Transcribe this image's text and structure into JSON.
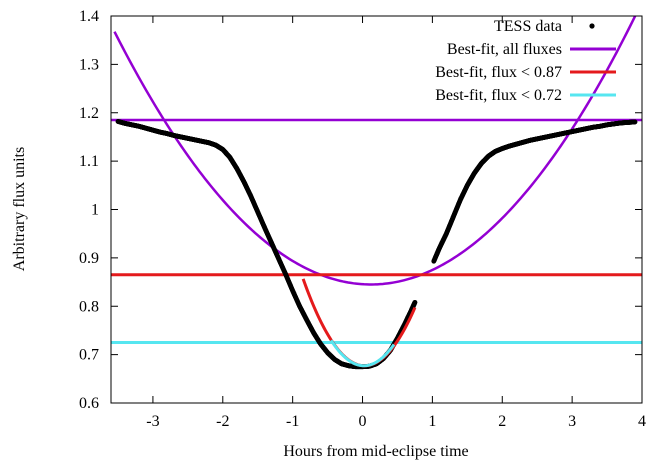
{
  "chart_data": {
    "type": "scatter",
    "title": "",
    "xlabel": "Hours from mid-eclipse time",
    "ylabel": "Arbitrary flux units",
    "xlim": [
      -3.6,
      4.0
    ],
    "ylim": [
      0.6,
      1.4
    ],
    "xticks": [
      -3,
      -2,
      -1,
      0,
      1,
      2,
      3,
      4
    ],
    "xtick_labels": [
      "-3",
      "-2",
      "-1",
      "0",
      "1",
      "2",
      "3",
      "4"
    ],
    "yticks": [
      0.6,
      0.7,
      0.8,
      0.9,
      1.0,
      1.1,
      1.2,
      1.3,
      1.4
    ],
    "ytick_labels": [
      "0.6",
      "0.7",
      "0.8",
      "0.9",
      "1",
      "1.1",
      "1.2",
      "1.3",
      "1.4"
    ],
    "grid": false,
    "legend_position": "top-right",
    "colors": {
      "tess": "#000000",
      "fit_all": "#9400d3",
      "fit_087": "#e41a1c",
      "fit_072": "#56e6f0"
    },
    "series": [
      {
        "name": "TESS data",
        "kind": "points",
        "x": [
          -3.5,
          -3.4,
          -3.3,
          -3.2,
          -3.1,
          -3.0,
          -2.9,
          -2.8,
          -2.7,
          -2.6,
          -2.5,
          -2.4,
          -2.3,
          -2.2,
          -2.1,
          -2.0,
          -1.9,
          -1.8,
          -1.7,
          -1.6,
          -1.5,
          -1.4,
          -1.3,
          -1.2,
          -1.1,
          -1.0,
          -0.9,
          -0.8,
          -0.7,
          -0.6,
          -0.5,
          -0.4,
          -0.3,
          -0.2,
          -0.1,
          0.0,
          0.1,
          0.2,
          0.3,
          0.4,
          0.5,
          0.6,
          0.7,
          0.75,
          1.02,
          1.1,
          1.2,
          1.3,
          1.4,
          1.5,
          1.6,
          1.7,
          1.8,
          1.9,
          2.0,
          2.1,
          2.2,
          2.3,
          2.4,
          2.5,
          2.6,
          2.7,
          2.8,
          2.9,
          3.0,
          3.1,
          3.2,
          3.3,
          3.4,
          3.5,
          3.6,
          3.7,
          3.8,
          3.9
        ],
        "y": [
          1.182,
          1.178,
          1.175,
          1.172,
          1.168,
          1.164,
          1.16,
          1.157,
          1.153,
          1.15,
          1.147,
          1.144,
          1.141,
          1.138,
          1.133,
          1.124,
          1.108,
          1.085,
          1.058,
          1.028,
          0.995,
          0.962,
          0.93,
          0.898,
          0.866,
          0.832,
          0.8,
          0.772,
          0.745,
          0.722,
          0.704,
          0.69,
          0.681,
          0.677,
          0.675,
          0.675,
          0.676,
          0.681,
          0.692,
          0.709,
          0.734,
          0.762,
          0.792,
          0.808,
          0.893,
          0.92,
          0.95,
          0.985,
          1.02,
          1.05,
          1.075,
          1.095,
          1.11,
          1.12,
          1.126,
          1.131,
          1.135,
          1.139,
          1.143,
          1.146,
          1.149,
          1.152,
          1.155,
          1.158,
          1.161,
          1.164,
          1.167,
          1.17,
          1.172,
          1.175,
          1.177,
          1.179,
          1.18,
          1.181
        ]
      },
      {
        "name": "Best-fit, all fluxes",
        "kind": "parabola",
        "a": 0.0388,
        "x0": 0.12,
        "c": 0.845
      },
      {
        "name": "Best-fit, flux < 0.87",
        "kind": "hline",
        "y": 0.865,
        "local_fit": {
          "a": 0.232,
          "x0": 0.03,
          "c": 0.677,
          "x_range": [
            -0.85,
            0.75
          ]
        }
      },
      {
        "name": "Best-fit, flux < 0.72",
        "kind": "hline",
        "y": 0.725,
        "local_fit": {
          "a": 0.238,
          "x0": 0.02,
          "c": 0.677,
          "x_range": [
            -0.45,
            0.45
          ]
        }
      }
    ],
    "reference_line": {
      "y": 1.185,
      "color": "#9400d3"
    }
  }
}
